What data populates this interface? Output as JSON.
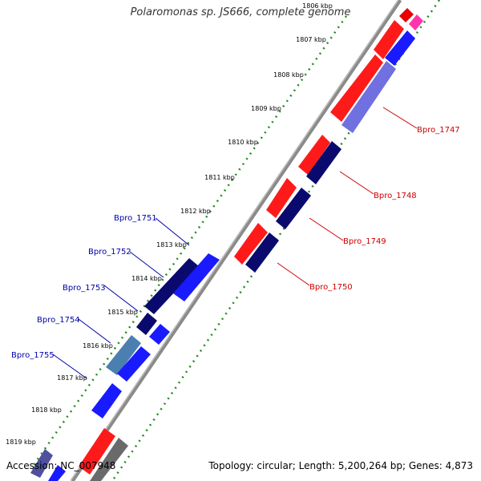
{
  "title": "Polaromonas sp. JS666, complete genome",
  "accession_text": "Accession: NC_007948",
  "topology_text": "Topology: circular; Length: 5,200,264 bp; Genes: 4,873",
  "colors": {
    "forward_label": "#cc0000",
    "reverse_label": "#0000aa",
    "backbone": "#8a8a8a",
    "tick": "#228b22"
  },
  "ticks": [
    {
      "label": "1806 kbp"
    },
    {
      "label": "1807 kbp"
    },
    {
      "label": "1808 kbp"
    },
    {
      "label": "1809 kbp"
    },
    {
      "label": "1810 kbp"
    },
    {
      "label": "1811 kbp"
    },
    {
      "label": "1812 kbp"
    },
    {
      "label": "1813 kbp"
    },
    {
      "label": "1814 kbp"
    },
    {
      "label": "1815 kbp"
    },
    {
      "label": "1816 kbp"
    },
    {
      "label": "1817 kbp"
    },
    {
      "label": "1818 kbp"
    },
    {
      "label": "1819 kbp"
    }
  ],
  "gene_labels_forward": [
    "Bpro_1747",
    "Bpro_1748",
    "Bpro_1749",
    "Bpro_1750"
  ],
  "gene_labels_reverse": [
    "Bpro_1751",
    "Bpro_1752",
    "Bpro_1753",
    "Bpro_1754",
    "Bpro_1755"
  ]
}
